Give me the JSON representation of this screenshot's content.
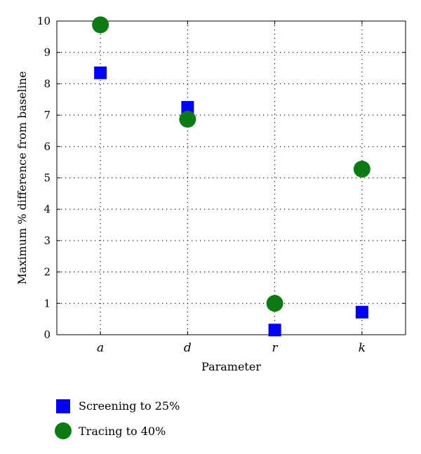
{
  "chart_data": {
    "type": "scatter",
    "categories": [
      "a",
      "d",
      "r",
      "k"
    ],
    "series": [
      {
        "name": "Screening to 25%",
        "marker": "square",
        "color": "#0000ff",
        "values": [
          8.35,
          7.25,
          0.15,
          0.72
        ]
      },
      {
        "name": "Tracing to 40%",
        "marker": "circle",
        "color": "#0a7a12",
        "values": [
          9.88,
          6.87,
          1.0,
          5.28
        ]
      }
    ],
    "title": "",
    "xlabel": "Parameter",
    "ylabel": "Maximum % difference from baseline",
    "ylim": [
      0,
      10
    ],
    "yticks": [
      0,
      1,
      2,
      3,
      4,
      5,
      6,
      7,
      8,
      9,
      10
    ],
    "grid": true,
    "legend_position": "bottom-left"
  }
}
